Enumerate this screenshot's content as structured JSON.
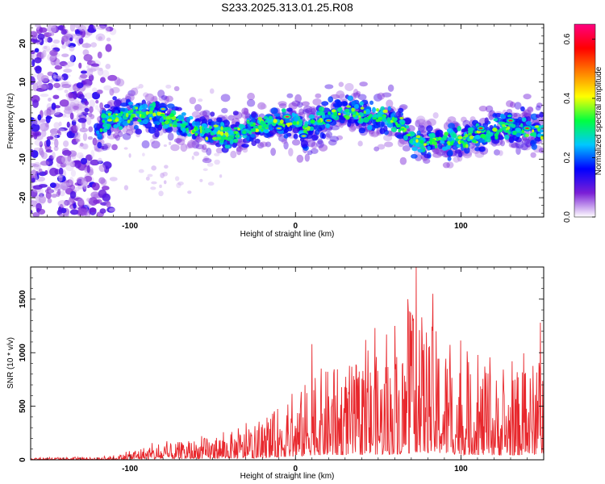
{
  "title": "S233.2025.313.01.25.R08",
  "chart_data": [
    {
      "type": "heatmap",
      "xlabel": "Height of straight line (km)",
      "ylabel": "Frequency (Hz)",
      "xlim": [
        -160,
        150
      ],
      "ylim": [
        -25,
        25
      ],
      "x_ticks": [
        -100,
        0,
        100
      ],
      "y_ticks": [
        -20,
        -10,
        0,
        10,
        20
      ],
      "colorbar": {
        "label": "Normalized spectral amplitude",
        "range": [
          0.0,
          0.65
        ],
        "ticks": [
          "0.0",
          "0.2",
          "0.4",
          "0.6"
        ],
        "tick_values": [
          0.0,
          0.2,
          0.4,
          0.6
        ],
        "colors": [
          "#ffffff",
          "#7a1fd6",
          "#0000ff",
          "#00c8ff",
          "#00ff40",
          "#ffff00",
          "#ff8000",
          "#ff0000",
          "#ff0080"
        ]
      },
      "noise_region_x": [
        -160,
        -105
      ],
      "ridge_center_hz": [
        {
          "x": -118,
          "y": -1
        },
        {
          "x": -100,
          "y": 2
        },
        {
          "x": -80,
          "y": 1
        },
        {
          "x": -60,
          "y": -2
        },
        {
          "x": -50,
          "y": -3
        },
        {
          "x": -40,
          "y": -4
        },
        {
          "x": -20,
          "y": -1
        },
        {
          "x": 0,
          "y": 0
        },
        {
          "x": 5,
          "y": -3
        },
        {
          "x": 15,
          "y": 0
        },
        {
          "x": 30,
          "y": 3
        },
        {
          "x": 45,
          "y": 1
        },
        {
          "x": 55,
          "y": 1
        },
        {
          "x": 65,
          "y": -1
        },
        {
          "x": 72,
          "y": -6
        },
        {
          "x": 85,
          "y": -5
        },
        {
          "x": 100,
          "y": -5
        },
        {
          "x": 115,
          "y": -3
        },
        {
          "x": 130,
          "y": -1
        },
        {
          "x": 150,
          "y": -3
        }
      ],
      "peaks": [
        {
          "x": -5,
          "y": 1,
          "amp": 0.65
        },
        {
          "x": 112,
          "y": -2,
          "amp": 0.6
        },
        {
          "x": 130,
          "y": 0,
          "amp": 0.62
        },
        {
          "x": 140,
          "y": -2,
          "amp": 0.62
        },
        {
          "x": 20,
          "y": 0,
          "amp": 0.5
        },
        {
          "x": -80,
          "y": 3,
          "amp": 0.45
        },
        {
          "x": 5,
          "y": -4,
          "amp": 0.45
        },
        {
          "x": -10,
          "y": -2,
          "amp": 0.45
        }
      ]
    },
    {
      "type": "line",
      "xlabel": "Height of straight line (km)",
      "ylabel": "SNR (10 * v/v)",
      "xlim": [
        -160,
        150
      ],
      "ylim": [
        0,
        1800
      ],
      "x_ticks": [
        -100,
        0,
        100
      ],
      "y_ticks": [
        0,
        500,
        1000,
        1500
      ],
      "series": [
        {
          "name": "SNR",
          "color": "#e8282d",
          "envelope": [
            {
              "x": -160,
              "y": 25
            },
            {
              "x": -120,
              "y": 30
            },
            {
              "x": -105,
              "y": 60
            },
            {
              "x": -95,
              "y": 150
            },
            {
              "x": -80,
              "y": 180
            },
            {
              "x": -65,
              "y": 230
            },
            {
              "x": -50,
              "y": 280
            },
            {
              "x": -35,
              "y": 350
            },
            {
              "x": -20,
              "y": 380
            },
            {
              "x": -10,
              "y": 650
            },
            {
              "x": 0,
              "y": 700
            },
            {
              "x": 10,
              "y": 1080
            },
            {
              "x": 25,
              "y": 1090
            },
            {
              "x": 35,
              "y": 1150
            },
            {
              "x": 48,
              "y": 1230
            },
            {
              "x": 60,
              "y": 1250
            },
            {
              "x": 68,
              "y": 1500
            },
            {
              "x": 73,
              "y": 1800
            },
            {
              "x": 85,
              "y": 1550
            },
            {
              "x": 100,
              "y": 1200
            },
            {
              "x": 115,
              "y": 1100
            },
            {
              "x": 125,
              "y": 1000
            },
            {
              "x": 140,
              "y": 1100
            },
            {
              "x": 150,
              "y": 1280
            }
          ],
          "notable_peaks": [
            {
              "x": 73,
              "y": 1800
            },
            {
              "x": 83,
              "y": 1550
            },
            {
              "x": 68,
              "y": 1500
            },
            {
              "x": 60,
              "y": 1250
            },
            {
              "x": 48,
              "y": 1230
            },
            {
              "x": 148,
              "y": 1280
            },
            {
              "x": 10,
              "y": 1080
            }
          ]
        }
      ]
    }
  ]
}
